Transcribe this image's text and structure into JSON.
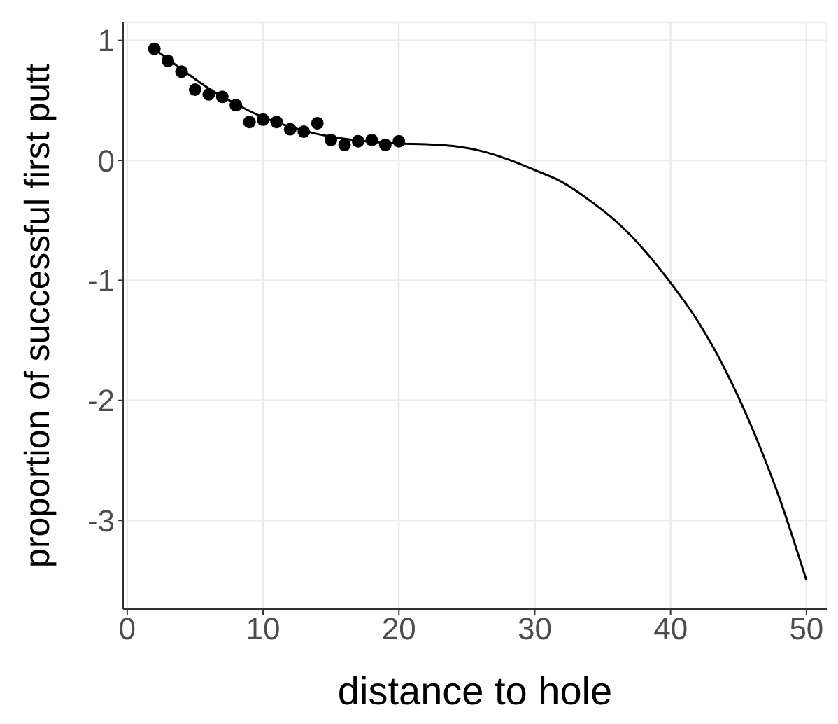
{
  "chart_data": {
    "type": "scatter",
    "xlabel": "distance to hole",
    "ylabel": "proportion of successful first putt",
    "xlim": [
      -0.3,
      51.5
    ],
    "ylim": [
      -3.74,
      1.15
    ],
    "xticks": [
      0,
      10,
      20,
      30,
      40,
      50
    ],
    "yticks": [
      -3,
      -2,
      -1,
      0,
      1
    ],
    "grid": true,
    "series": [
      {
        "type": "scatter",
        "color": "#000000",
        "marker": "circle",
        "x": [
          2,
          3,
          4,
          5,
          6,
          7,
          8,
          9,
          10,
          11,
          12,
          13,
          14,
          15,
          16,
          17,
          18,
          19,
          20
        ],
        "values": [
          0.93,
          0.83,
          0.74,
          0.59,
          0.55,
          0.53,
          0.46,
          0.32,
          0.34,
          0.32,
          0.26,
          0.24,
          0.31,
          0.17,
          0.13,
          0.16,
          0.17,
          0.13,
          0.16
        ]
      },
      {
        "type": "line",
        "color": "#000000",
        "marker": "none",
        "x": [
          2,
          4,
          6,
          8,
          10,
          12,
          14,
          16,
          18,
          20,
          22,
          24,
          26,
          28,
          30,
          32,
          34,
          36,
          38,
          40,
          42,
          44,
          46,
          48,
          50
        ],
        "values": [
          0.93,
          0.76,
          0.6,
          0.47,
          0.36,
          0.28,
          0.22,
          0.18,
          0.155,
          0.14,
          0.135,
          0.12,
          0.08,
          0.01,
          -0.08,
          -0.18,
          -0.33,
          -0.51,
          -0.74,
          -1.02,
          -1.34,
          -1.74,
          -2.23,
          -2.81,
          -3.5
        ]
      }
    ]
  }
}
